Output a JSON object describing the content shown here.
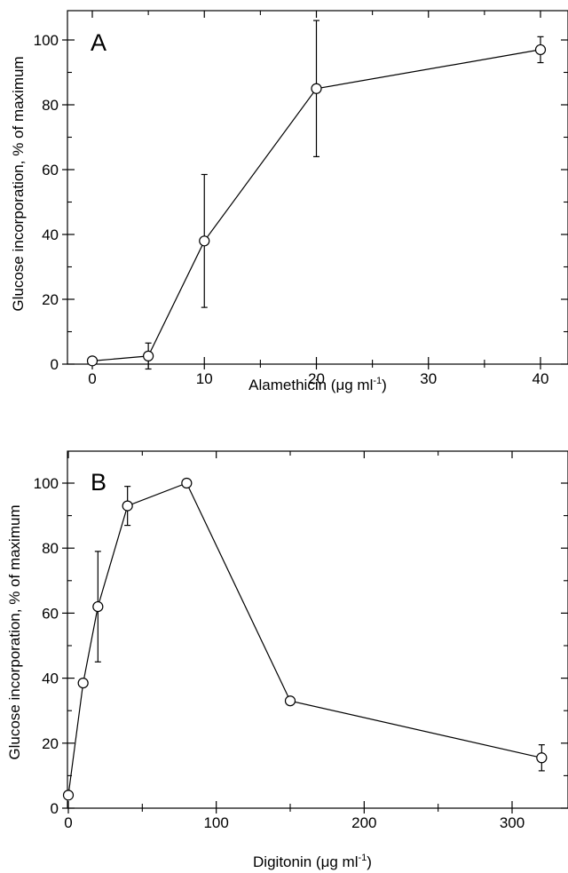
{
  "chart_data": [
    {
      "panel_label": "A",
      "type": "line",
      "xlabel_prefix": "Alamethicin (",
      "xlabel_unit": "μg ml",
      "xlabel_exp": "-1",
      "xlabel_suffix": ")",
      "ylabel": "Glucose incorporation, % of maximum",
      "xlim": [
        0,
        42
      ],
      "ylim": [
        0,
        110
      ],
      "x_ticks": [
        0,
        10,
        20,
        30,
        40
      ],
      "x_tick_labels": [
        "0",
        "10",
        "20",
        "30",
        "40"
      ],
      "x_minor_ticks": [
        5,
        15,
        25,
        35
      ],
      "y_ticks": [
        0,
        20,
        40,
        60,
        80,
        100
      ],
      "y_tick_labels": [
        "0",
        "20",
        "40",
        "60",
        "80",
        "100"
      ],
      "y_minor_ticks": [
        10,
        30,
        50,
        70,
        90
      ],
      "points": [
        {
          "x": 0,
          "y": 1,
          "err": 0
        },
        {
          "x": 5,
          "y": 2.5,
          "err": 4
        },
        {
          "x": 10,
          "y": 38,
          "err": 20.5
        },
        {
          "x": 20,
          "y": 85,
          "err": 21
        },
        {
          "x": 40,
          "y": 97,
          "err": 4
        }
      ]
    },
    {
      "panel_label": "B",
      "type": "line",
      "xlabel_prefix": "Digitonin (",
      "xlabel_unit": "μg ml",
      "xlabel_exp": "-1",
      "xlabel_suffix": ")",
      "ylabel": "Glucose incorporation, % of maximum",
      "xlim": [
        0,
        350
      ],
      "ylim": [
        0,
        110
      ],
      "x_ticks": [
        0,
        100,
        200,
        300
      ],
      "x_tick_labels": [
        "0",
        "100",
        "200",
        "300"
      ],
      "x_minor_ticks": [
        50,
        150,
        250,
        350
      ],
      "y_ticks": [
        0,
        20,
        40,
        60,
        80,
        100
      ],
      "y_tick_labels": [
        "0",
        "20",
        "40",
        "60",
        "80",
        "100"
      ],
      "y_minor_ticks": [
        10,
        30,
        50,
        70,
        90
      ],
      "points": [
        {
          "x": 0,
          "y": 4,
          "err": 0
        },
        {
          "x": 10,
          "y": 38.5,
          "err": 0.8
        },
        {
          "x": 20,
          "y": 62,
          "err": 17
        },
        {
          "x": 40,
          "y": 93,
          "err": 6
        },
        {
          "x": 80,
          "y": 100,
          "err": 0
        },
        {
          "x": 150,
          "y": 33,
          "err": 1
        },
        {
          "x": 320,
          "y": 15.5,
          "err": 4
        }
      ]
    }
  ]
}
